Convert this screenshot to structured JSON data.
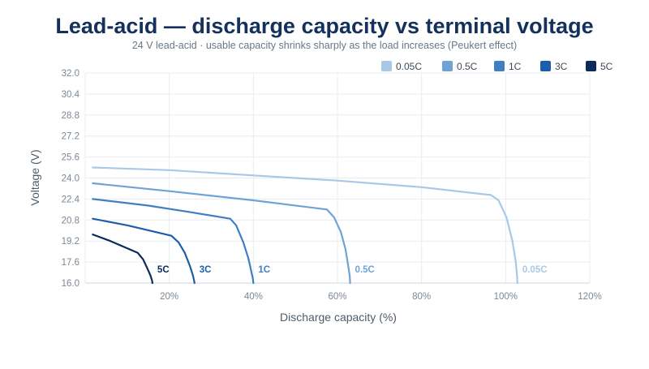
{
  "chart_data": {
    "type": "line",
    "title": "Lead-acid — discharge capacity vs terminal voltage",
    "subtitle": "24 V lead-acid · usable capacity shrinks sharply as the load increases (Peukert effect)",
    "xlabel": "Discharge capacity (%)",
    "ylabel": "Voltage (V)",
    "xlim": [
      0,
      120
    ],
    "ylim": [
      16.0,
      32.0
    ],
    "x_ticks": [
      20,
      40,
      60,
      80,
      100,
      120
    ],
    "x_tick_labels": [
      "20%",
      "40%",
      "60%",
      "80%",
      "100%",
      "120%"
    ],
    "y_ticks": [
      16.0,
      17.6,
      19.2,
      20.8,
      22.4,
      24.0,
      25.6,
      27.2,
      28.8,
      30.4,
      32.0
    ],
    "y_tick_labels": [
      "16.0",
      "17.6",
      "19.2",
      "20.8",
      "22.4",
      "24.0",
      "25.6",
      "27.2",
      "28.8",
      "30.4",
      "32.0"
    ],
    "grid": true,
    "legend_position": "top-right",
    "series": [
      {
        "name": "0.05C",
        "color": "#a8c8e6",
        "end_label": "0.05C",
        "x": [
          1.8,
          20,
          40,
          60,
          80,
          96.5,
          98.3,
          100.2,
          101.6,
          102.4,
          102.7,
          102.8
        ],
        "y": [
          24.8,
          24.6,
          24.2,
          23.8,
          23.3,
          22.7,
          22.3,
          21.0,
          19.2,
          17.6,
          16.6,
          16.0
        ]
      },
      {
        "name": "0.5C",
        "color": "#6fa3d6",
        "end_label": "0.5C",
        "x": [
          1.8,
          20,
          40,
          57.5,
          59.2,
          60.8,
          61.9,
          62.5,
          62.9,
          63.0
        ],
        "y": [
          23.6,
          23.0,
          22.3,
          21.6,
          21.0,
          19.9,
          18.6,
          17.4,
          16.6,
          16.0
        ]
      },
      {
        "name": "1C",
        "color": "#3f7fc1",
        "end_label": "1C",
        "x": [
          1.8,
          15,
          25,
          34.5,
          35.9,
          37.6,
          38.8,
          39.5,
          39.9,
          40.0
        ],
        "y": [
          22.4,
          21.9,
          21.4,
          20.9,
          20.4,
          19.1,
          17.9,
          16.9,
          16.3,
          16.0
        ]
      },
      {
        "name": "3C",
        "color": "#1c5fa8",
        "end_label": "3C",
        "x": [
          1.8,
          10,
          20.5,
          22.2,
          23.7,
          24.9,
          25.6,
          25.9,
          26.0
        ],
        "y": [
          20.9,
          20.4,
          19.6,
          19.1,
          18.3,
          17.3,
          16.6,
          16.2,
          16.0
        ]
      },
      {
        "name": "5C",
        "color": "#0d2a5c",
        "end_label": "5C",
        "x": [
          1.8,
          6,
          12.5,
          13.8,
          14.8,
          15.5,
          15.9,
          16.0
        ],
        "y": [
          19.7,
          19.2,
          18.3,
          17.8,
          17.1,
          16.6,
          16.2,
          16.0
        ]
      }
    ]
  }
}
